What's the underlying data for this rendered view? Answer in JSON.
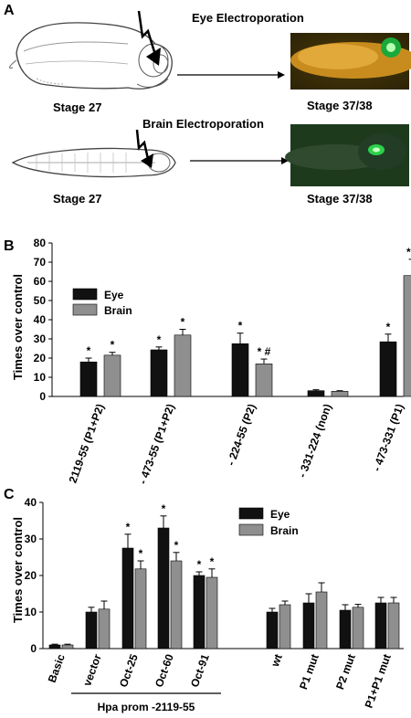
{
  "figure": {
    "panels": {
      "a": {
        "label": "A",
        "eye_title": "Eye Electroporation",
        "brain_title": "Brain Electroporation",
        "stage_start_1": "Stage 27",
        "stage_end_1": "Stage 37/38",
        "stage_start_2": "Stage 27",
        "stage_end_2": "Stage 37/38"
      },
      "b": {
        "label": "B"
      },
      "c": {
        "label": "C"
      }
    }
  },
  "chart_data": [
    {
      "type": "bar",
      "ylabel": "Times over control",
      "ylim": [
        0,
        80
      ],
      "yticks": [
        0,
        10,
        20,
        30,
        40,
        50,
        60,
        70,
        80
      ],
      "legend_placement": "top-left",
      "categories": [
        "- 2119-55 (P1+P2)",
        "- 473-55 (P1+P2)",
        "- 224-55 (P2)",
        "- 331-224 (non)",
        "- 473-331 (P1)"
      ],
      "series": [
        {
          "name": "Eye",
          "color": "#111111",
          "values": [
            18,
            24.3,
            27.5,
            3,
            28.5
          ],
          "errors": [
            2,
            1.5,
            5.5,
            0.5,
            4
          ],
          "annotations": [
            "*",
            "*",
            "*",
            "",
            "*"
          ]
        },
        {
          "name": "Brain",
          "color": "#8f8f8f",
          "values": [
            21.5,
            32,
            17,
            2.7,
            63
          ],
          "errors": [
            1.5,
            3,
            2.5,
            0.3,
            8.5
          ],
          "annotations": [
            "*",
            "*",
            "* #",
            "",
            "* t"
          ]
        }
      ]
    },
    {
      "type": "bar",
      "ylabel": "Times over control",
      "ylim": [
        0,
        40
      ],
      "yticks": [
        0,
        10,
        20,
        30,
        40
      ],
      "legend_placement": "top-right",
      "categories": [
        "Basic",
        "vector",
        "Oct-25",
        "Oct-60",
        "Oct-91",
        "wt",
        "P1 mut",
        "P2 mut",
        "P1+P1 mut"
      ],
      "group_label": "Hpa prom -2119-55",
      "series": [
        {
          "name": "Eye",
          "color": "#111111",
          "values": [
            1,
            10,
            27.5,
            33,
            20,
            10,
            12.5,
            10.5,
            12.5
          ],
          "errors": [
            0.2,
            1.3,
            3.8,
            3.3,
            1,
            1,
            2.5,
            1.5,
            1.5
          ],
          "annotations": [
            "",
            "",
            "*",
            "*",
            "*",
            "",
            "",
            "",
            ""
          ]
        },
        {
          "name": "Brain",
          "color": "#8f8f8f",
          "values": [
            1,
            10.8,
            21.8,
            24,
            19.5,
            12,
            15.5,
            11.3,
            12.5
          ],
          "errors": [
            0.2,
            2.2,
            2.2,
            2.3,
            2.3,
            1,
            2.5,
            0.8,
            1.5
          ],
          "annotations": [
            "",
            "",
            "*",
            "*",
            "*",
            "",
            "",
            "",
            ""
          ]
        }
      ]
    }
  ]
}
